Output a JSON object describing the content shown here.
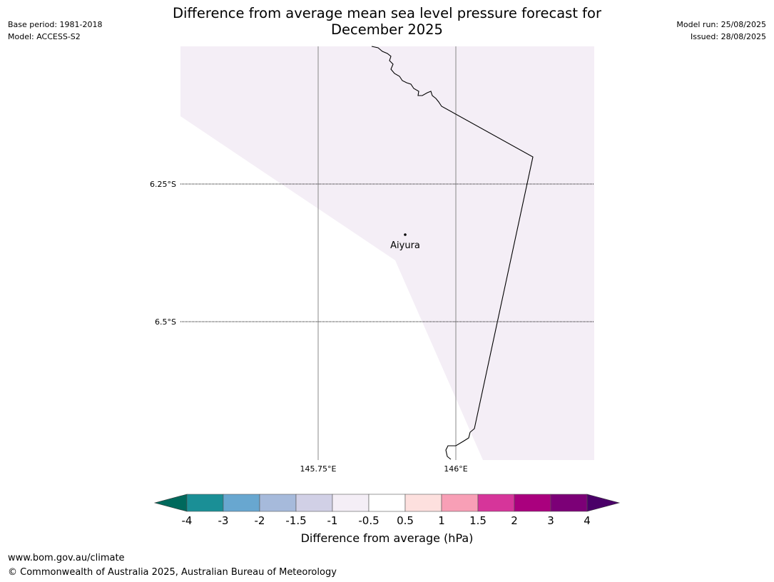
{
  "header": {
    "base_period": "Base period: 1981-2018",
    "model": "Model: ACCESS-S2",
    "model_run": "Model run: 25/08/2025",
    "issued": "Issued: 28/08/2025",
    "title_line1": "Difference from average mean sea level pressure forecast for",
    "title_line2": "December 2025"
  },
  "map": {
    "lat_labels": [
      "6.25°S",
      "6.5°S"
    ],
    "lon_labels": [
      "145.75°E",
      "146°E"
    ],
    "place": "Aiyura",
    "fill_color": "#f4eef6"
  },
  "colorbar": {
    "label": "Difference from average (hPa)",
    "ticks": [
      "-4",
      "-3",
      "-2",
      "-1.5",
      "-1",
      "-0.5",
      "0.5",
      "1",
      "1.5",
      "2",
      "3",
      "4"
    ],
    "under_color": "#00695c",
    "over_color": "#4a0068",
    "colors": [
      "#1a8f96",
      "#68a7d0",
      "#a6badb",
      "#d1d0e6",
      "#f4eef6",
      "#ffffff",
      "#fde0de",
      "#f89fb6",
      "#d6359a",
      "#aa007e",
      "#7c0077"
    ]
  },
  "footer": {
    "url": "www.bom.gov.au/climate",
    "copyright": "© Commonwealth of Australia 2025, Australian Bureau of Meteorology"
  }
}
